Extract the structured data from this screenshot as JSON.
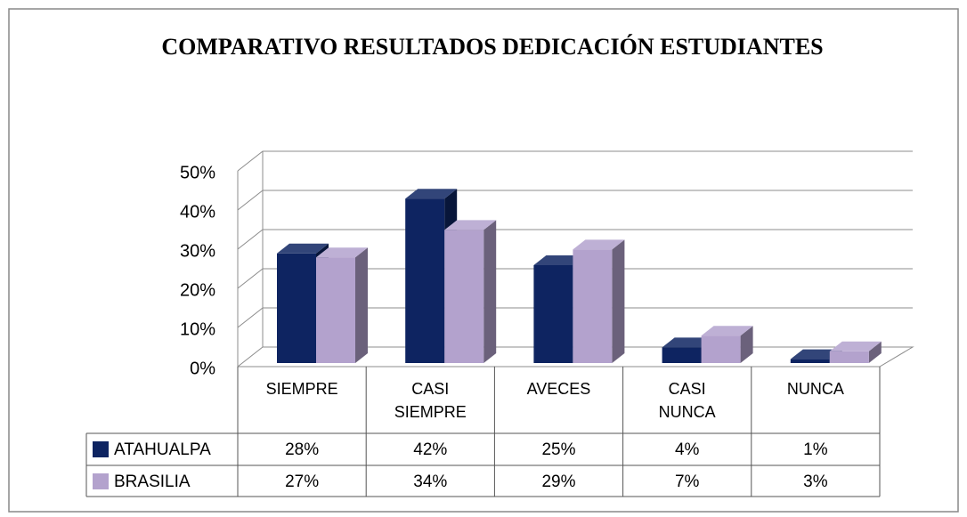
{
  "chart_data": {
    "type": "bar3d",
    "title": "COMPARATIVO RESULTADOS DEDICACIÓN ESTUDIANTES",
    "categories": [
      "SIEMPRE",
      "CASI SIEMPRE",
      "AVECES",
      "CASI NUNCA",
      "NUNCA"
    ],
    "series": [
      {
        "name": "ATAHUALPA",
        "color": "#0e2461",
        "values": [
          28,
          42,
          25,
          4,
          1
        ],
        "value_labels": [
          "28%",
          "42%",
          "25%",
          "4%",
          "1%"
        ]
      },
      {
        "name": "BRASILIA",
        "color": "#b3a2cd",
        "values": [
          27,
          34,
          29,
          7,
          3
        ],
        "value_labels": [
          "27%",
          "34%",
          "29%",
          "7%",
          "3%"
        ]
      }
    ],
    "ylim": [
      0,
      50
    ],
    "yticks": [
      {
        "value": 0,
        "label": "0%"
      },
      {
        "value": 10,
        "label": "10%"
      },
      {
        "value": 20,
        "label": "20%"
      },
      {
        "value": 30,
        "label": "30%"
      },
      {
        "value": 40,
        "label": "40%"
      },
      {
        "value": 50,
        "label": "50%"
      }
    ],
    "grid": true
  }
}
